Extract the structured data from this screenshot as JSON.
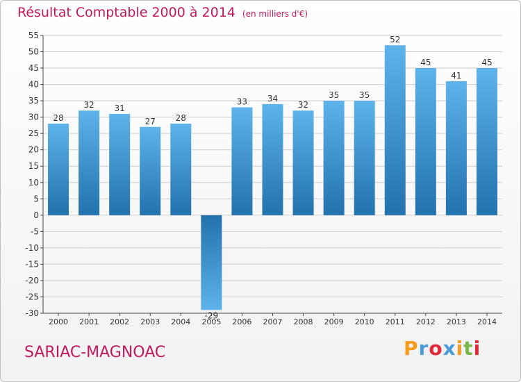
{
  "header": {
    "title": "Résultat Comptable 2000 à 2014",
    "unit": "(en milliers d'€)"
  },
  "footer": {
    "commune": "SARIAC-MAGNOAC"
  },
  "logo": {
    "letters": [
      "P",
      "r",
      "o",
      "x",
      "i",
      "t",
      "i"
    ],
    "colors": [
      "#f39c1f",
      "#4a9ad8",
      "#e2273a",
      "#4a9ad8",
      "#f39c1f",
      "#7ab648",
      "#e2273a"
    ]
  },
  "chart_data": {
    "type": "bar",
    "title": "Résultat Comptable 2000 à 2014",
    "ylabel": "",
    "xlabel": "",
    "categories": [
      "2000",
      "2001",
      "2002",
      "2003",
      "2004",
      "2005",
      "2006",
      "2007",
      "2008",
      "2009",
      "2010",
      "2011",
      "2012",
      "2013",
      "2014"
    ],
    "values": [
      28,
      32,
      31,
      27,
      28,
      -29,
      33,
      34,
      32,
      35,
      35,
      52,
      45,
      41,
      45
    ],
    "ylim": [
      -30,
      55
    ],
    "yticks": [
      55,
      50,
      45,
      40,
      35,
      30,
      25,
      20,
      15,
      10,
      5,
      0,
      -5,
      -10,
      -15,
      -20,
      -25,
      -30
    ],
    "grid": true,
    "colors": {
      "bar_light": "#5db3ea",
      "bar_dark": "#2272ad",
      "grid": "#cccccc",
      "axis": "#444444",
      "text": "#333333"
    }
  }
}
